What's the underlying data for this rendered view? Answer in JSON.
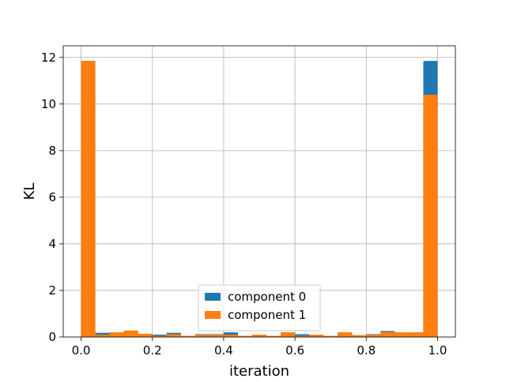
{
  "chart_data": {
    "type": "bar",
    "title": "",
    "xlabel": "iteration",
    "ylabel": "KL",
    "xlim": [
      -0.05,
      1.05
    ],
    "ylim": [
      0,
      12.5
    ],
    "x_ticks": [
      0.0,
      0.2,
      0.4,
      0.6,
      0.8,
      1.0
    ],
    "x_tick_labels": [
      "0.0",
      "0.2",
      "0.4",
      "0.6",
      "0.8",
      "1.0"
    ],
    "y_ticks": [
      0,
      2,
      4,
      6,
      8,
      10,
      12
    ],
    "y_tick_labels": [
      "0",
      "2",
      "4",
      "6",
      "8",
      "10",
      "12"
    ],
    "grid": true,
    "legend_position": "bottom-center",
    "bin_edges": [
      0.0,
      0.04,
      0.08,
      0.12,
      0.16,
      0.2,
      0.24,
      0.28,
      0.32,
      0.36,
      0.4,
      0.44,
      0.48,
      0.52,
      0.56,
      0.6,
      0.64,
      0.68,
      0.72,
      0.76,
      0.8,
      0.84,
      0.88,
      0.92,
      0.96,
      1.0
    ],
    "series": [
      {
        "name": "component 0",
        "color": "#1f77b4",
        "values": [
          11.85,
          0.18,
          0.2,
          0.25,
          0.12,
          0.1,
          0.18,
          0.05,
          0.12,
          0.12,
          0.2,
          0.04,
          0.1,
          0.05,
          0.2,
          0.12,
          0.1,
          0.04,
          0.2,
          0.08,
          0.12,
          0.26,
          0.2,
          0.2,
          11.85
        ]
      },
      {
        "name": "component 1",
        "color": "#ff7f0e",
        "values": [
          11.85,
          0.1,
          0.2,
          0.28,
          0.14,
          0.05,
          0.12,
          0.05,
          0.1,
          0.1,
          0.1,
          0.05,
          0.1,
          0.05,
          0.2,
          0.05,
          0.1,
          0.05,
          0.2,
          0.08,
          0.1,
          0.22,
          0.2,
          0.2,
          10.4
        ]
      }
    ]
  }
}
